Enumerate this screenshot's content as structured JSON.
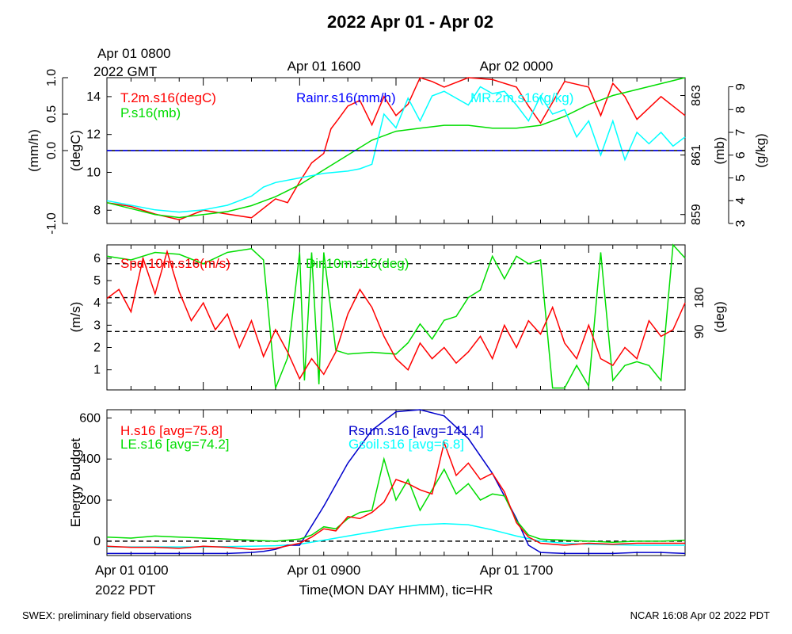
{
  "chart_data": {
    "title": "2022 Apr 01 - Apr 02",
    "top_times": {
      "gmt_first": "Apr 01 0800",
      "gmt_first_year": "2022 GMT",
      "gmt_mid": "Apr 01 1600",
      "gmt_last": "Apr 02 0000"
    },
    "bottom_times": {
      "pdt_first": "Apr 01 0100",
      "pdt_first_year": "2022 PDT",
      "pdt_mid": "Apr 01 0900",
      "pdt_last": "Apr 01 1700",
      "xlabel": "Time(MON DAY HHMM), tic=HR"
    },
    "footer_left": "SWEX: preliminary field observations",
    "footer_right": "NCAR 16:08 Apr 02 2022 PDT",
    "x_range_hours": [
      0,
      24
    ],
    "panels": [
      {
        "type": "line",
        "axes": [
          {
            "label": "(mm/h)",
            "ticks": [
              "-1.0",
              "0.0",
              "0.5",
              "1.0"
            ],
            "ylim": [
              -1,
              1
            ]
          },
          {
            "label": "(degC)",
            "ticks": [
              "8",
              "10",
              "12",
              "14"
            ],
            "ylim": [
              7.3,
              15
            ]
          },
          {
            "label": "(mb)",
            "ticks": [
              "859",
              "861",
              "863"
            ],
            "ylim": [
              858.7,
              863.6
            ]
          },
          {
            "label": "(g/kg)",
            "ticks": [
              "3",
              "4",
              "5",
              "6",
              "7",
              "8",
              "9"
            ],
            "ylim": [
              3,
              9.4
            ]
          }
        ],
        "series": [
          {
            "name": "T.2m.s16(degC)",
            "color": "#ff0000",
            "axis": "(degC)",
            "x": [
              0,
              1,
              2,
              3,
              4,
              5,
              6,
              7,
              7.5,
              8,
              8.5,
              9,
              9.3,
              9.6,
              10,
              10.5,
              11,
              11.5,
              12,
              12.5,
              13,
              13.5,
              14,
              15,
              16,
              17,
              17.5,
              18,
              19,
              20,
              20.5,
              21,
              21.5,
              22,
              23,
              24
            ],
            "y": [
              8.4,
              8.2,
              7.8,
              7.5,
              8.0,
              7.8,
              7.6,
              8.6,
              8.4,
              9.5,
              10.5,
              11.0,
              12.3,
              12.8,
              13.5,
              13.8,
              12.5,
              14.0,
              13.0,
              13.6,
              15.0,
              14.8,
              14.5,
              15.0,
              14.9,
              14.5,
              13.5,
              12.6,
              14.8,
              14.5,
              13.0,
              14.7,
              14.0,
              12.8,
              14.0,
              13.0
            ]
          },
          {
            "name": "P.s16(mb)",
            "color": "#00dd00",
            "axis": "(mb)",
            "x": [
              0,
              1,
              2,
              3,
              4,
              5,
              6,
              7,
              8,
              9,
              10,
              11,
              12,
              13,
              14,
              15,
              16,
              17,
              18,
              19,
              20,
              21,
              22,
              23,
              24
            ],
            "y": [
              859.4,
              859.2,
              859.0,
              858.9,
              859.0,
              859.1,
              859.3,
              859.6,
              860.0,
              860.5,
              861.0,
              861.5,
              861.8,
              861.9,
              862.0,
              862.0,
              861.9,
              861.9,
              862.0,
              862.3,
              862.7,
              863.0,
              863.2,
              863.4,
              863.6
            ]
          },
          {
            "name": "Rainr.s16(mm/h)",
            "color": "#0000ff",
            "axis": "(mm/h)",
            "x": [
              0,
              24
            ],
            "y": [
              0,
              0
            ]
          },
          {
            "name": "MR.2m.s16(g/kg)",
            "color": "#00ffff",
            "axis": "(g/kg)",
            "x": [
              0,
              1,
              2,
              3,
              4,
              5,
              6,
              6.5,
              7,
              8,
              9,
              10,
              10.5,
              11,
              11.5,
              12,
              12.5,
              13,
              13.5,
              14,
              14.5,
              15,
              15.5,
              16,
              16.5,
              17,
              17.5,
              18,
              18.5,
              19,
              19.5,
              20,
              20.5,
              21,
              21.5,
              22,
              22.5,
              23,
              23.5,
              24
            ],
            "y": [
              4.0,
              3.8,
              3.6,
              3.5,
              3.6,
              3.8,
              4.2,
              4.6,
              4.8,
              5.0,
              5.2,
              5.3,
              5.4,
              5.6,
              7.8,
              7.2,
              8.5,
              7.5,
              8.6,
              8.8,
              8.5,
              8.2,
              9.0,
              8.7,
              8.8,
              8.2,
              7.5,
              8.6,
              7.8,
              8.0,
              6.8,
              7.5,
              6.0,
              7.5,
              5.8,
              7.0,
              6.5,
              7.0,
              6.4,
              6.8
            ]
          }
        ]
      },
      {
        "type": "line",
        "axes": [
          {
            "label": "(m/s)",
            "ticks": [
              "1",
              "2",
              "3",
              "4",
              "5",
              "6"
            ],
            "ylim": [
              0.1,
              6.6
            ]
          },
          {
            "label": "(deg)",
            "ticks": [
              "90",
              "180"
            ],
            "ylim": [
              -65,
              320
            ]
          }
        ],
        "reference_lines": [
          {
            "axis": "(deg)",
            "value": 90
          },
          {
            "axis": "(deg)",
            "value": 180
          },
          {
            "axis": "(deg)",
            "value": 270
          }
        ],
        "series": [
          {
            "name": "Spd.10m.s16(m/s)",
            "color": "#ff0000",
            "axis": "(m/s)",
            "x": [
              0,
              0.5,
              1,
              1.5,
              2,
              2.5,
              3,
              3.5,
              4,
              4.5,
              5,
              5.5,
              6,
              6.5,
              7,
              7.5,
              8,
              8.5,
              9,
              9.5,
              10,
              10.5,
              11,
              11.5,
              12,
              12.5,
              13,
              13.5,
              14,
              14.5,
              15,
              15.5,
              16,
              16.5,
              17,
              17.5,
              18,
              18.5,
              19,
              19.5,
              20,
              20.5,
              21,
              21.5,
              22,
              22.5,
              23,
              23.5,
              24
            ],
            "y": [
              4.2,
              4.6,
              3.6,
              6.0,
              4.4,
              6.3,
              4.5,
              3.2,
              4.0,
              2.8,
              3.5,
              2.0,
              3.2,
              1.6,
              2.8,
              1.8,
              0.6,
              1.5,
              0.8,
              1.8,
              3.5,
              4.6,
              3.8,
              2.5,
              1.5,
              1.0,
              2.2,
              1.5,
              2.0,
              1.3,
              1.8,
              2.5,
              1.5,
              3.0,
              2.0,
              3.2,
              2.6,
              3.8,
              2.2,
              1.5,
              3.0,
              1.5,
              1.2,
              2.0,
              1.5,
              3.2,
              2.5,
              2.8,
              4.0
            ]
          },
          {
            "name": "Dir.10m.s16(deg)",
            "color": "#00dd00",
            "axis": "(deg)",
            "x": [
              0,
              1,
              2,
              3,
              4,
              5,
              6,
              6.5,
              7,
              7.5,
              8,
              8.2,
              8.5,
              8.8,
              9,
              9.5,
              10,
              11,
              12,
              12.5,
              13,
              13.5,
              14,
              14.5,
              15,
              15.5,
              16,
              16.5,
              17,
              17.5,
              18,
              18.5,
              19,
              19.5,
              20,
              20.5,
              21,
              21.5,
              22,
              22.5,
              23,
              23.5,
              24
            ],
            "y": [
              290,
              280,
              300,
              295,
              270,
              300,
              310,
              280,
              -60,
              20,
              300,
              -40,
              300,
              -50,
              300,
              40,
              30,
              35,
              30,
              60,
              110,
              70,
              120,
              130,
              180,
              200,
              290,
              230,
              290,
              270,
              280,
              -60,
              -60,
              0,
              -55,
              300,
              -40,
              0,
              10,
              0,
              -40,
              320,
              285
            ]
          }
        ]
      },
      {
        "type": "line",
        "ylabel": "Energy Budget",
        "ticks": [
          "0",
          "200",
          "400",
          "600"
        ],
        "ylim": [
          -70,
          640
        ],
        "series": [
          {
            "name": "H.s16 [avg=75.8]",
            "color": "#ff0000",
            "x": [
              0,
              1,
              2,
              3,
              4,
              5,
              6,
              7,
              8,
              8.5,
              9,
              9.5,
              10,
              10.5,
              11,
              11.5,
              12,
              12.5,
              13,
              13.5,
              14,
              14.5,
              15,
              15.5,
              16,
              16.5,
              17,
              17.5,
              18,
              19,
              20,
              21,
              22,
              23,
              24
            ],
            "y": [
              -25,
              -30,
              -30,
              -35,
              -25,
              -30,
              -40,
              -35,
              -10,
              20,
              60,
              50,
              120,
              110,
              140,
              190,
              300,
              280,
              250,
              230,
              480,
              320,
              380,
              300,
              330,
              240,
              90,
              20,
              -10,
              -20,
              -10,
              -15,
              -10,
              -10,
              -10
            ]
          },
          {
            "name": "LE.s16 [avg=74.2]",
            "color": "#00dd00",
            "x": [
              0,
              1,
              2,
              3,
              4,
              5,
              6,
              7,
              8,
              8.5,
              9,
              9.5,
              10,
              10.5,
              11,
              11.5,
              12,
              12.5,
              13,
              13.5,
              14,
              14.5,
              15,
              15.5,
              16,
              16.5,
              17,
              17.5,
              18,
              19,
              20,
              21,
              22,
              23,
              24
            ],
            "y": [
              20,
              15,
              25,
              20,
              15,
              10,
              5,
              0,
              10,
              30,
              70,
              60,
              110,
              140,
              150,
              400,
              200,
              300,
              150,
              250,
              350,
              230,
              280,
              200,
              230,
              220,
              100,
              30,
              10,
              5,
              0,
              -5,
              0,
              0,
              5
            ]
          },
          {
            "name": "Rsum.s16 [avg=141.4]",
            "color": "#0000cc",
            "x": [
              0,
              2,
              4,
              5,
              6,
              6.5,
              7,
              7.5,
              8,
              9,
              10,
              11,
              12,
              13,
              14,
              15,
              16,
              17,
              17.5,
              18,
              19,
              20,
              21,
              22,
              23,
              24
            ],
            "y": [
              -60,
              -60,
              -60,
              -60,
              -55,
              -50,
              -40,
              -20,
              -20,
              170,
              380,
              540,
              630,
              640,
              610,
              500,
              330,
              110,
              -20,
              -55,
              -60,
              -60,
              -60,
              -55,
              -55,
              -60
            ]
          },
          {
            "name": "Gsoil.s16 [avg=6.8]",
            "color": "#00ffff",
            "x": [
              0,
              2,
              4,
              6,
              7,
              8,
              9,
              10,
              11,
              12,
              13,
              14,
              15,
              16,
              17,
              18,
              19,
              20,
              22,
              24
            ],
            "y": [
              -28,
              -28,
              -28,
              -25,
              -22,
              -15,
              5,
              25,
              45,
              65,
              80,
              85,
              80,
              55,
              25,
              0,
              -10,
              -15,
              -20,
              -20
            ]
          }
        ]
      }
    ]
  }
}
